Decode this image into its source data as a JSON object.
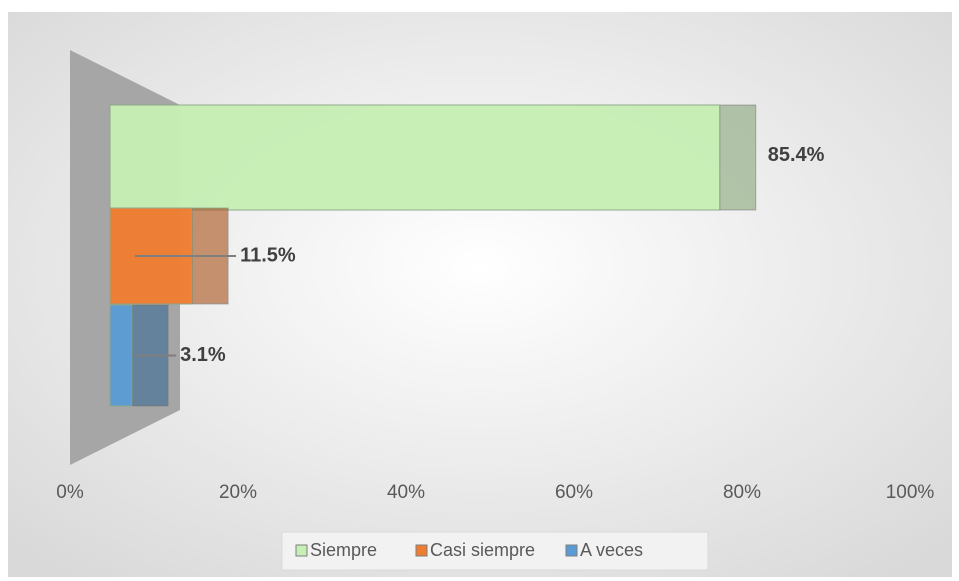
{
  "chart_data": {
    "type": "bar",
    "orientation": "horizontal",
    "series": [
      {
        "name": "Siempre",
        "color": "#c6efb4",
        "values": [
          85.4
        ],
        "value_labels": [
          "85.4%"
        ]
      },
      {
        "name": "Casi siempre",
        "color": "#ef7d31",
        "values": [
          11.5
        ],
        "value_labels": [
          "11.5%"
        ]
      },
      {
        "name": "A veces",
        "color": "#5b9bd5",
        "values": [
          3.1
        ],
        "value_labels": [
          "3.1%"
        ]
      }
    ],
    "xlim": [
      0,
      100
    ],
    "xticks": [
      {
        "value": 0,
        "label": "0%"
      },
      {
        "value": 20,
        "label": "20%"
      },
      {
        "value": 40,
        "label": "40%"
      },
      {
        "value": 60,
        "label": "60%"
      },
      {
        "value": 80,
        "label": "80%"
      },
      {
        "value": 100,
        "label": "100%"
      }
    ],
    "legend": "bottom"
  }
}
